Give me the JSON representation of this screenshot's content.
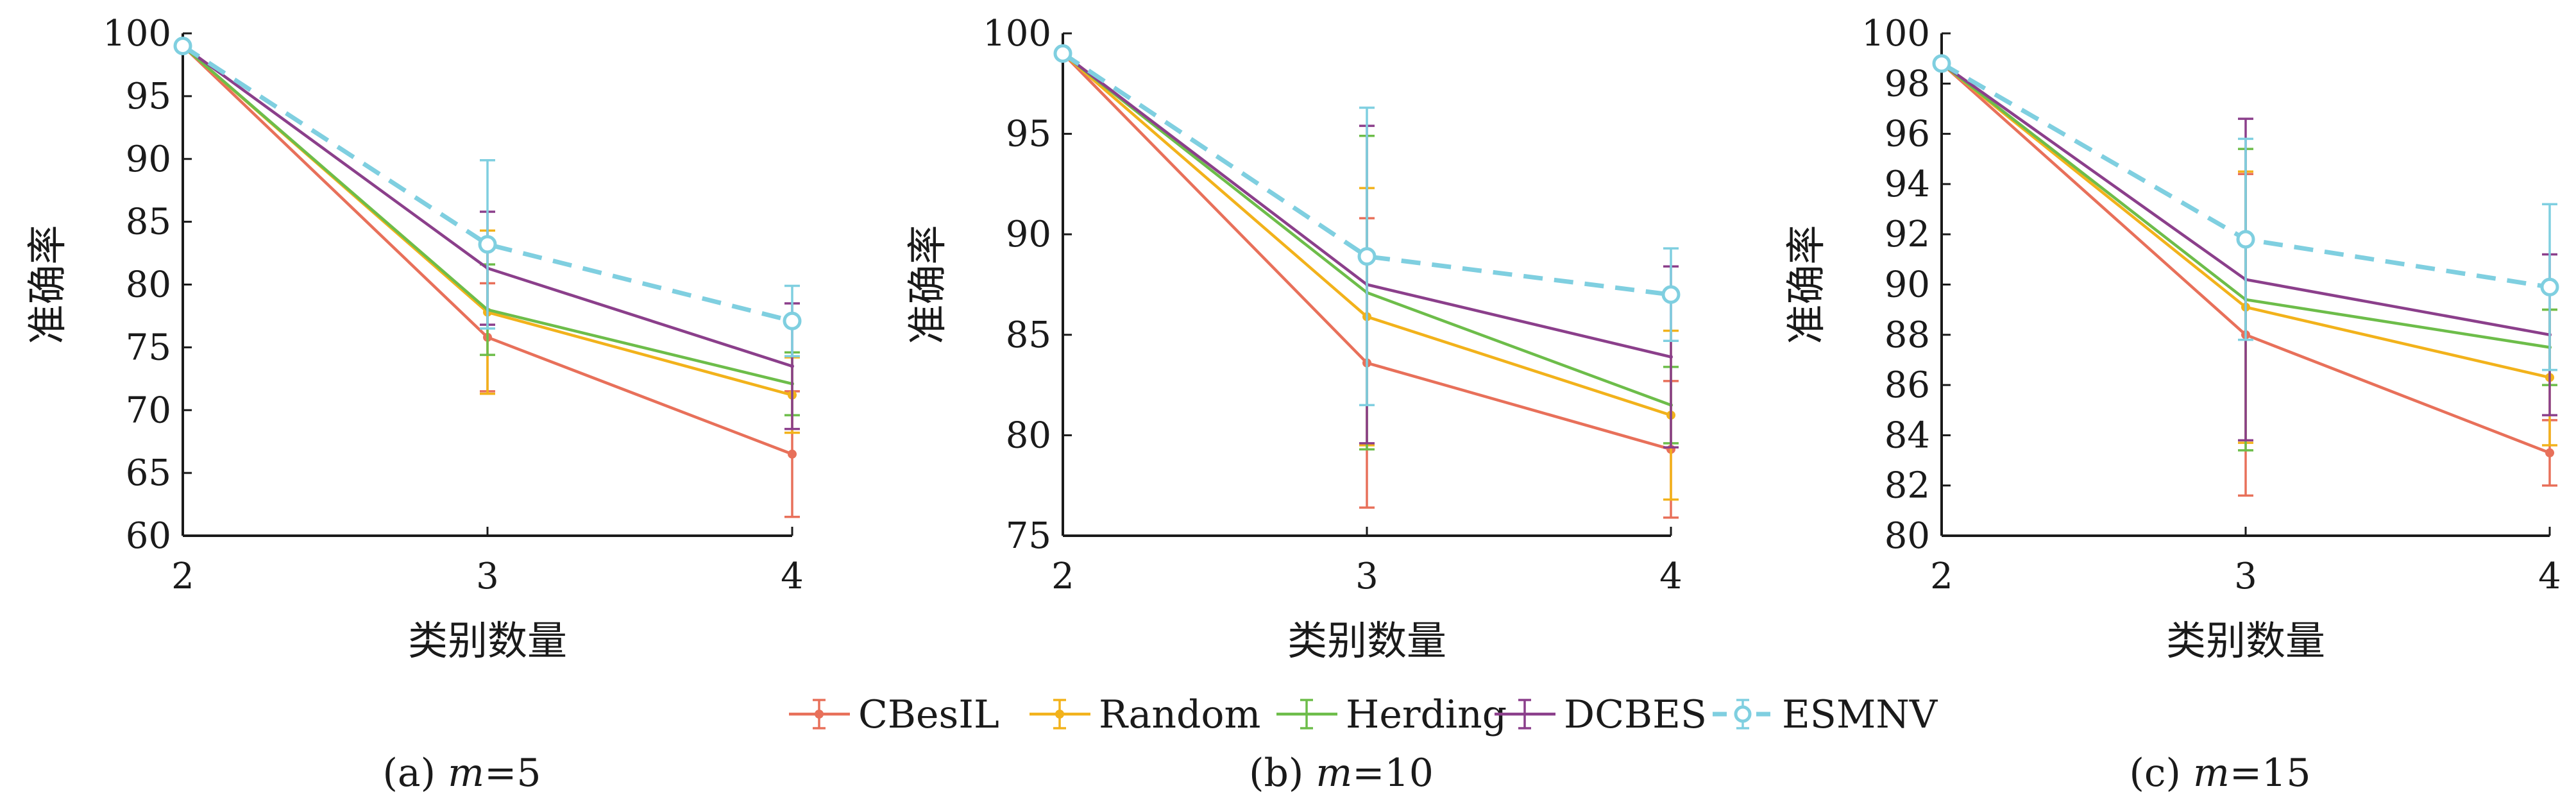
{
  "chart_data": [
    {
      "type": "line",
      "caption": "(a) m=5",
      "caption_prefix": "(a) ",
      "caption_m": "m",
      "caption_value": "=5",
      "xlabel": "类别数量",
      "ylabel": "准确率",
      "x": [
        2,
        3,
        4
      ],
      "xlim": [
        2,
        4
      ],
      "ylim": [
        60,
        100
      ],
      "yticks": [
        60,
        65,
        70,
        75,
        80,
        85,
        90,
        95,
        100
      ],
      "grid": false,
      "series": [
        {
          "name": "CBesIL",
          "values": [
            99,
            75.8,
            66.5
          ],
          "err": [
            0,
            4.3,
            5.0
          ]
        },
        {
          "name": "Random",
          "values": [
            99,
            77.8,
            71.2
          ],
          "err": [
            0,
            6.5,
            3.0
          ]
        },
        {
          "name": "Herding",
          "values": [
            99,
            78.0,
            72.1
          ],
          "err": [
            0,
            3.6,
            2.5
          ]
        },
        {
          "name": "DCBES",
          "values": [
            99,
            81.3,
            73.5
          ],
          "err": [
            0,
            4.5,
            5.0
          ]
        },
        {
          "name": "ESMNV",
          "values": [
            99,
            83.2,
            77.1
          ],
          "err": [
            0,
            6.7,
            2.8
          ]
        }
      ]
    },
    {
      "type": "line",
      "caption": "(b) m=10",
      "caption_prefix": "(b) ",
      "caption_m": "m",
      "caption_value": "=10",
      "xlabel": "类别数量",
      "ylabel": "准确率",
      "x": [
        2,
        3,
        4
      ],
      "xlim": [
        2,
        4
      ],
      "ylim": [
        75,
        100
      ],
      "yticks": [
        75,
        80,
        85,
        90,
        95,
        100
      ],
      "grid": false,
      "series": [
        {
          "name": "CBesIL",
          "values": [
            99,
            83.6,
            79.3
          ],
          "err": [
            0,
            7.2,
            3.4
          ]
        },
        {
          "name": "Random",
          "values": [
            99,
            85.9,
            81.0
          ],
          "err": [
            0,
            6.4,
            4.2
          ]
        },
        {
          "name": "Herding",
          "values": [
            99,
            87.1,
            81.5
          ],
          "err": [
            0,
            7.8,
            1.9
          ]
        },
        {
          "name": "DCBES",
          "values": [
            99,
            87.5,
            83.9
          ],
          "err": [
            0,
            7.9,
            4.5
          ]
        },
        {
          "name": "ESMNV",
          "values": [
            99,
            88.9,
            87.0
          ],
          "err": [
            0,
            7.4,
            2.3
          ]
        }
      ]
    },
    {
      "type": "line",
      "caption": "(c) m=15",
      "caption_prefix": "(c) ",
      "caption_m": "m",
      "caption_value": "=15",
      "xlabel": "类别数量",
      "ylabel": "准确率",
      "x": [
        2,
        3,
        4
      ],
      "xlim": [
        2,
        4
      ],
      "ylim": [
        80,
        100
      ],
      "yticks": [
        80,
        82,
        84,
        86,
        88,
        90,
        92,
        94,
        96,
        98,
        100
      ],
      "grid": false,
      "series": [
        {
          "name": "CBesIL",
          "values": [
            98.8,
            88.0,
            83.3
          ],
          "err": [
            0,
            6.4,
            1.3
          ]
        },
        {
          "name": "Random",
          "values": [
            98.8,
            89.1,
            86.3
          ],
          "err": [
            0,
            5.4,
            2.7
          ]
        },
        {
          "name": "Herding",
          "values": [
            98.8,
            89.4,
            87.5
          ],
          "err": [
            0,
            6.0,
            1.5
          ]
        },
        {
          "name": "DCBES",
          "values": [
            98.8,
            90.2,
            88.0
          ],
          "err": [
            0,
            6.4,
            3.2
          ]
        },
        {
          "name": "ESMNV",
          "values": [
            98.8,
            91.8,
            89.9
          ],
          "err": [
            0,
            4.0,
            3.3
          ]
        }
      ]
    }
  ],
  "legend": {
    "placement": "bottom-center",
    "entries": [
      "CBesIL",
      "Random",
      "Herding",
      "DCBES",
      "ESMNV"
    ]
  },
  "colors": {
    "CBesIL": "#e8705a",
    "Random": "#f2b21b",
    "Herding": "#6dbd4a",
    "DCBES": "#8b3f8b",
    "ESMNV": "#7fcfe0",
    "axis": "#1a1a1a"
  },
  "markers": {
    "CBesIL": "dot",
    "Random": "dot",
    "Herding": "none",
    "DCBES": "none",
    "ESMNV": "circle"
  },
  "line_styles": {
    "CBesIL": "solid",
    "Random": "solid",
    "Herding": "solid",
    "DCBES": "solid",
    "ESMNV": "dashed"
  }
}
